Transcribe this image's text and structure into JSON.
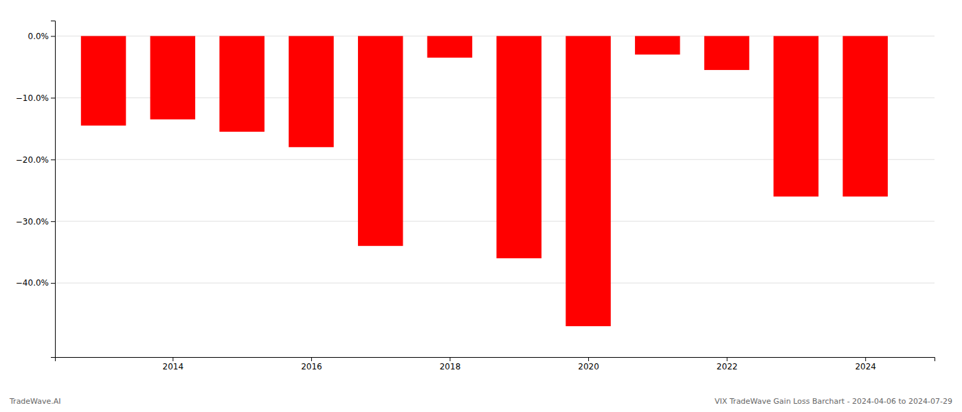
{
  "chart_data": {
    "type": "bar",
    "x": [
      2013,
      2014,
      2015,
      2016,
      2017,
      2018,
      2019,
      2020,
      2021,
      2022,
      2023,
      2024
    ],
    "values": [
      -14.5,
      -13.5,
      -15.5,
      -18.0,
      -34.0,
      -3.5,
      -36.0,
      -47.0,
      -3.0,
      -5.5,
      -26.0,
      -26.0
    ],
    "color": "#ff0000",
    "xlim": [
      2012.3,
      2025.0
    ],
    "xticks": [
      2014,
      2016,
      2018,
      2020,
      2022,
      2024
    ],
    "ylim": [
      -52,
      2.5
    ],
    "yticks": [
      {
        "value": 0.0,
        "label": "0.0%"
      },
      {
        "value": -10.0,
        "label": "−10.0%"
      },
      {
        "value": -20.0,
        "label": "−20.0%"
      },
      {
        "value": -30.0,
        "label": "−30.0%"
      },
      {
        "value": -40.0,
        "label": "−40.0%"
      }
    ],
    "grid": true,
    "annotations": [
      "TradeWave.AI",
      "VIX TradeWave Gain Loss Barchart - 2024-04-06 to 2024-07-29"
    ]
  }
}
